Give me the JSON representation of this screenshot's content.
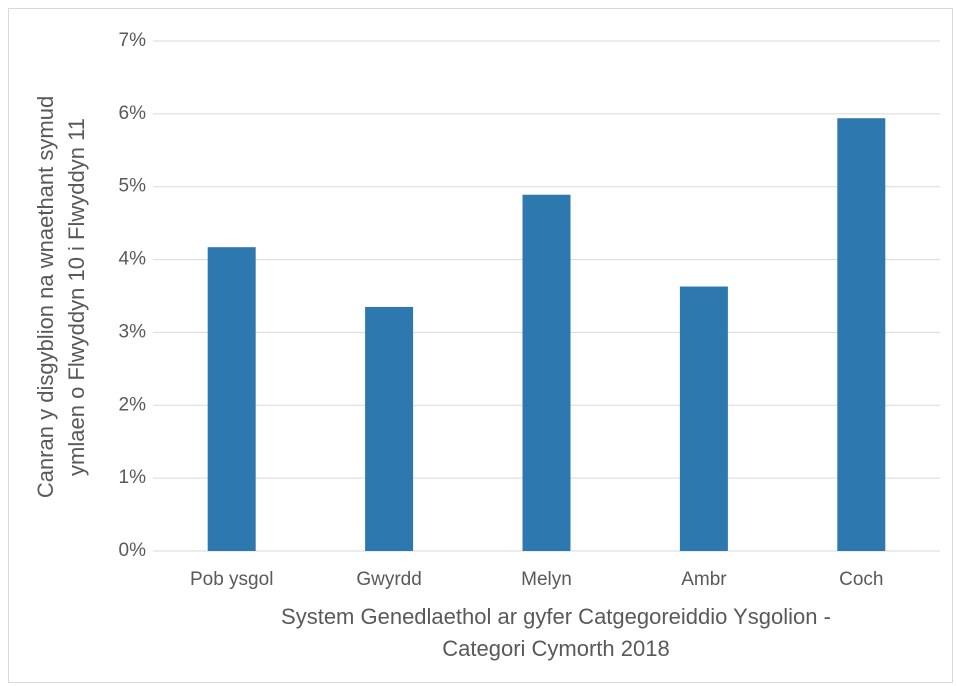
{
  "chart_data": {
    "type": "bar",
    "categories": [
      "Pob ysgol",
      "Gwyrdd",
      "Melyn",
      "Ambr",
      "Coch"
    ],
    "values": [
      4.17,
      3.35,
      4.89,
      3.63,
      5.94
    ],
    "color": "#2e78b0",
    "ylim": [
      0,
      7
    ],
    "yticks": [
      {
        "value": 0,
        "label": "0%"
      },
      {
        "value": 1,
        "label": "1%"
      },
      {
        "value": 2,
        "label": "2%"
      },
      {
        "value": 3,
        "label": "3%"
      },
      {
        "value": 4,
        "label": "4%"
      },
      {
        "value": 5,
        "label": "5%"
      },
      {
        "value": 6,
        "label": "6%"
      },
      {
        "value": 7,
        "label": "7%"
      }
    ],
    "grid": true,
    "x_label": [
      "System Genedlaethol ar gyfer Catgegoreiddio Ysgolion -",
      "Categori Cymorth 2018"
    ],
    "y_label": [
      "Canran y disgyblion na wnaethant symud",
      "ymlaen o Flwyddyn 10 i Flwyddyn 11"
    ]
  }
}
